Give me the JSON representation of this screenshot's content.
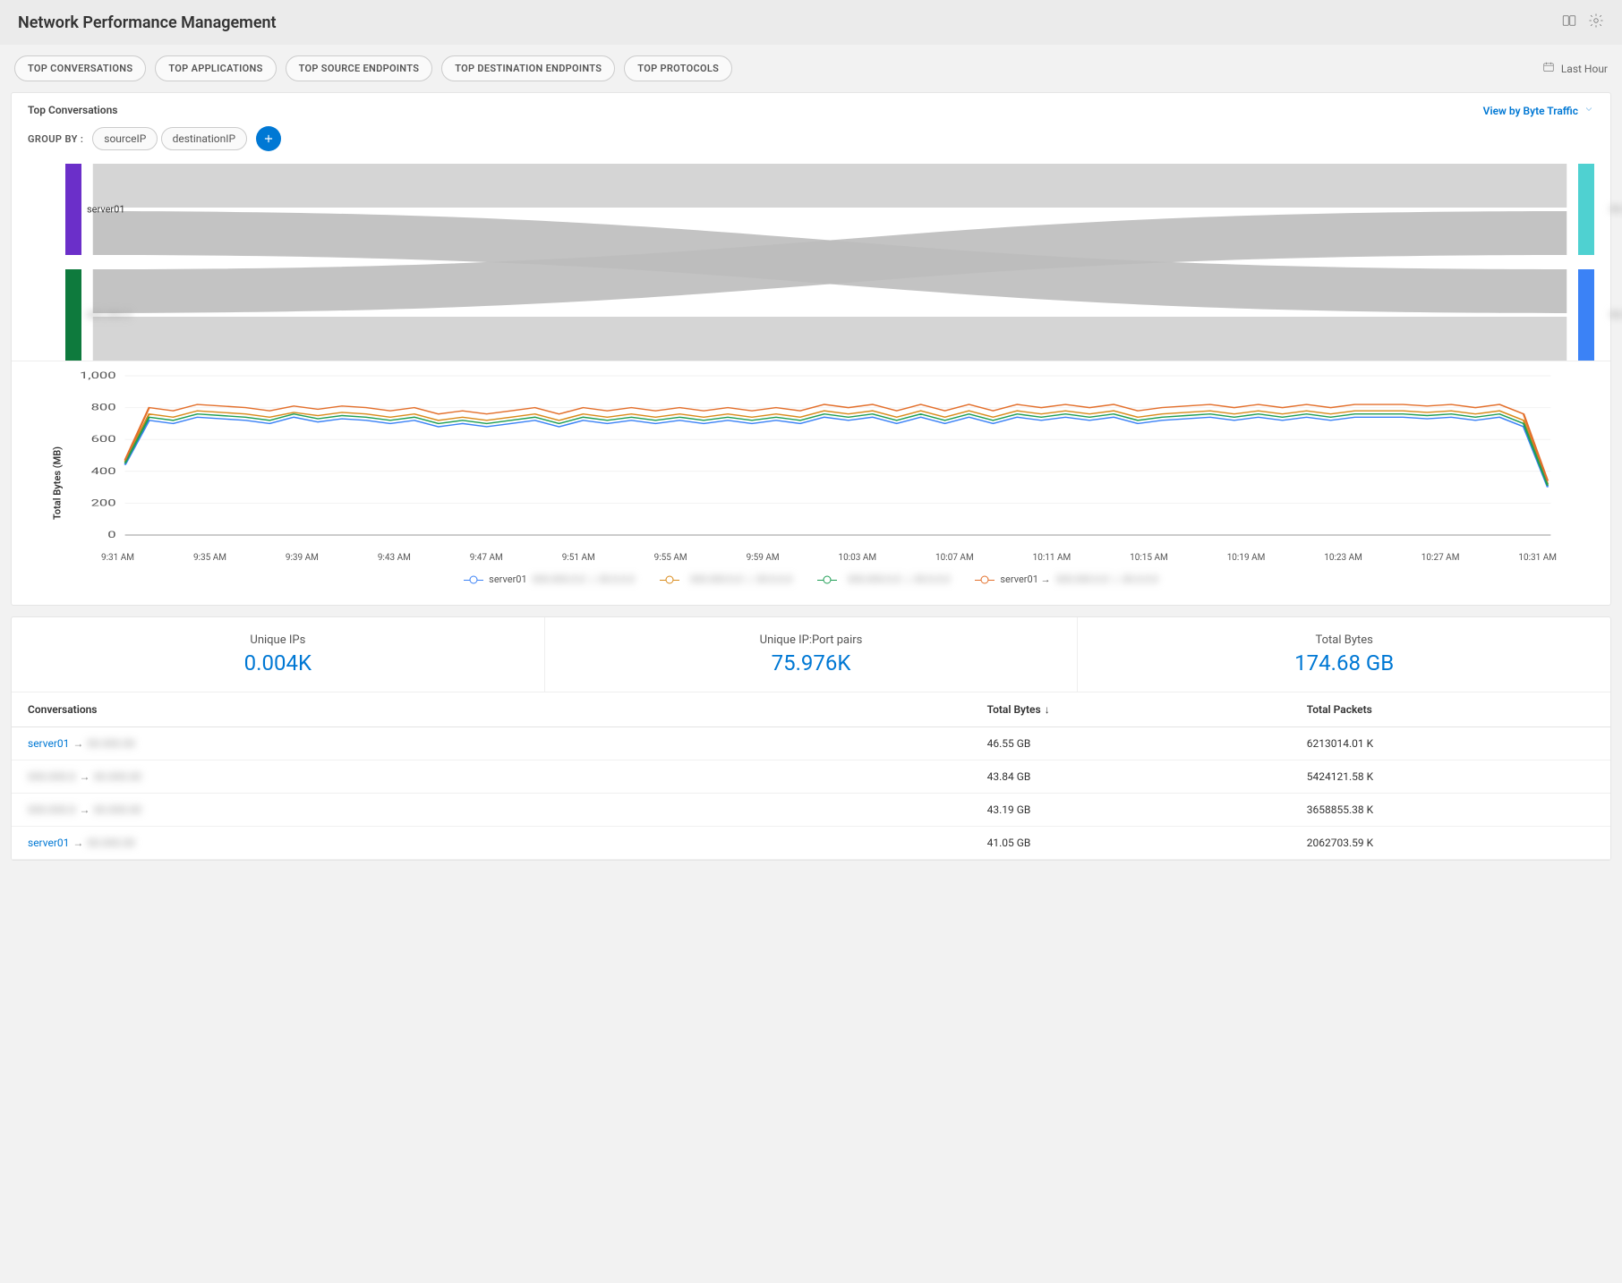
{
  "header": {
    "title": "Network Performance Management"
  },
  "tabs": [
    "TOP CONVERSATIONS",
    "TOP APPLICATIONS",
    "TOP SOURCE ENDPOINTS",
    "TOP DESTINATION ENDPOINTS",
    "TOP PROTOCOLS"
  ],
  "timeRange": "Last Hour",
  "panel": {
    "title": "Top Conversations",
    "viewBy": "View by Byte Traffic",
    "groupByLabel": "GROUP BY :",
    "groupChips": [
      "sourceIP",
      "destinationIP"
    ]
  },
  "sankey": {
    "left": [
      {
        "label": "server01",
        "color": "#6b2fc9",
        "y": 0,
        "h": 102
      },
      {
        "label": "",
        "color": "#0e7a3d",
        "y": 118,
        "h": 102
      }
    ],
    "right": [
      {
        "label": "",
        "color": "#4fd1d1",
        "y": 0,
        "h": 102
      },
      {
        "label": "",
        "color": "#3b82f6",
        "y": 118,
        "h": 102
      }
    ],
    "leftLabelRedacted": false,
    "flowColor": "#d0d0d0",
    "flowColorMid": "#bcbcbc"
  },
  "linechart": {
    "ylabel": "Total Bytes (MB)",
    "ylim": [
      0,
      1000
    ],
    "yticks": [
      0,
      200,
      400,
      600,
      800,
      1000
    ],
    "xticks": [
      "9:31 AM",
      "9:35 AM",
      "9:39 AM",
      "9:43 AM",
      "9:47 AM",
      "9:51 AM",
      "9:55 AM",
      "9:59 AM",
      "10:03 AM",
      "10:07 AM",
      "10:11 AM",
      "10:15 AM",
      "10:19 AM",
      "10:23 AM",
      "10:27 AM",
      "10:31 AM"
    ],
    "gridColor": "#f2f2f2",
    "axisColor": "#999",
    "series": [
      {
        "name": "server01",
        "redactedSuffix": true,
        "color": "#3b82f6",
        "values": [
          440,
          720,
          700,
          740,
          730,
          720,
          700,
          740,
          710,
          730,
          720,
          700,
          720,
          680,
          700,
          680,
          700,
          720,
          680,
          720,
          700,
          720,
          700,
          720,
          700,
          720,
          700,
          720,
          700,
          740,
          720,
          740,
          700,
          740,
          700,
          740,
          700,
          740,
          720,
          740,
          720,
          740,
          700,
          720,
          730,
          740,
          720,
          740,
          720,
          740,
          720,
          740,
          740,
          740,
          730,
          740,
          720,
          740,
          680,
          300
        ]
      },
      {
        "name": "",
        "redactedSuffix": true,
        "color": "#d98a1a",
        "values": [
          460,
          760,
          740,
          780,
          770,
          760,
          740,
          770,
          750,
          770,
          760,
          740,
          760,
          720,
          740,
          720,
          740,
          760,
          720,
          760,
          740,
          760,
          740,
          760,
          740,
          760,
          740,
          760,
          740,
          780,
          760,
          780,
          740,
          780,
          740,
          780,
          740,
          780,
          760,
          780,
          760,
          780,
          740,
          760,
          770,
          780,
          760,
          780,
          760,
          780,
          760,
          780,
          780,
          780,
          770,
          780,
          760,
          780,
          720,
          320
        ]
      },
      {
        "name": "",
        "redactedSuffix": true,
        "color": "#1f9e55",
        "values": [
          450,
          740,
          720,
          760,
          750,
          740,
          720,
          760,
          730,
          750,
          740,
          720,
          740,
          700,
          720,
          700,
          720,
          740,
          700,
          740,
          720,
          740,
          720,
          740,
          720,
          740,
          720,
          740,
          720,
          760,
          740,
          760,
          720,
          760,
          720,
          760,
          720,
          760,
          740,
          760,
          740,
          760,
          720,
          740,
          750,
          760,
          740,
          760,
          740,
          760,
          740,
          760,
          760,
          760,
          750,
          760,
          740,
          760,
          700,
          310
        ]
      },
      {
        "name": "server01 →",
        "redactedSuffix": true,
        "color": "#e36f2b",
        "values": [
          470,
          800,
          780,
          820,
          810,
          800,
          780,
          810,
          790,
          810,
          800,
          780,
          800,
          760,
          780,
          760,
          780,
          800,
          760,
          800,
          780,
          800,
          780,
          800,
          780,
          800,
          780,
          800,
          780,
          820,
          800,
          820,
          780,
          820,
          780,
          820,
          780,
          820,
          800,
          820,
          800,
          820,
          780,
          800,
          810,
          820,
          800,
          820,
          800,
          820,
          800,
          820,
          820,
          820,
          810,
          820,
          800,
          820,
          760,
          340
        ]
      }
    ]
  },
  "stats": [
    {
      "label": "Unique IPs",
      "value": "0.004K"
    },
    {
      "label": "Unique IP:Port pairs",
      "value": "75.976K"
    },
    {
      "label": "Total Bytes",
      "value": "174.68 GB"
    }
  ],
  "table": {
    "columns": [
      "Conversations",
      "Total Bytes",
      "Total Packets"
    ],
    "sortCol": 1,
    "sortDir": "desc",
    "rows": [
      {
        "src": "server01",
        "srcLink": true,
        "dst": "",
        "bytes": "46.55 GB",
        "packets": "6213014.01 K"
      },
      {
        "src": "",
        "srcLink": false,
        "dst": "",
        "bytes": "43.84 GB",
        "packets": "5424121.58 K"
      },
      {
        "src": "",
        "srcLink": false,
        "dst": "",
        "bytes": "43.19 GB",
        "packets": "3658855.38 K"
      },
      {
        "src": "server01",
        "srcLink": true,
        "dst": "",
        "bytes": "41.05 GB",
        "packets": "2062703.59 K"
      }
    ]
  }
}
